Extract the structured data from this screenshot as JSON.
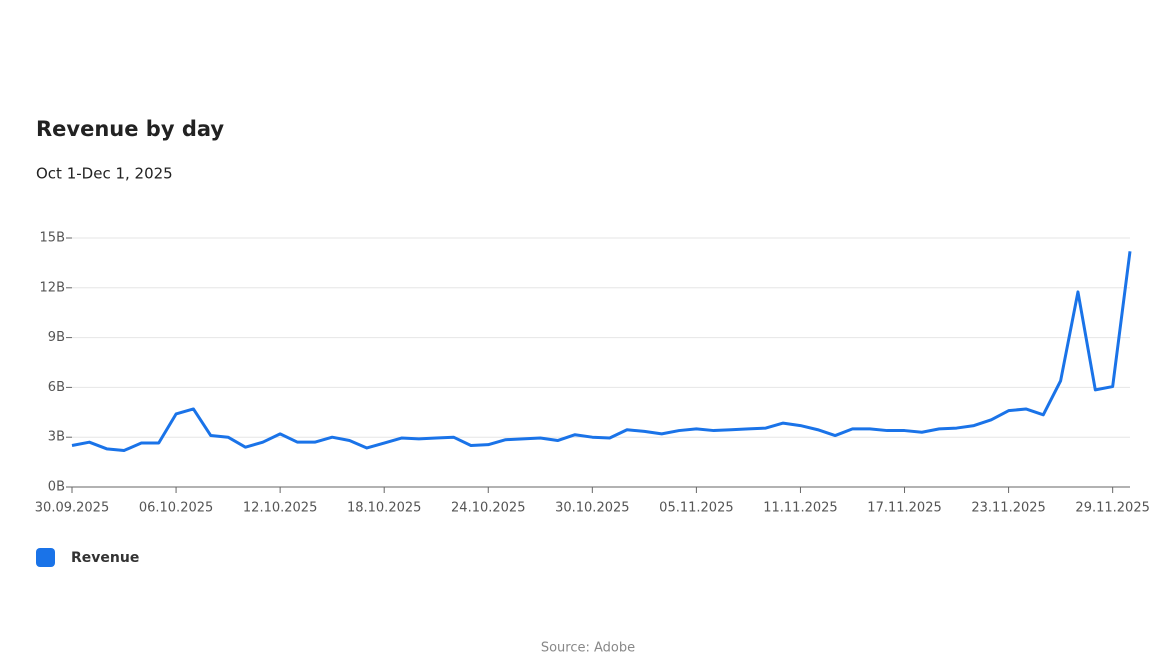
{
  "chart_data": {
    "type": "line",
    "title": "Revenue by day",
    "subtitle": "Oct 1-Dec 1, 2025",
    "x": [
      "30.09.2025",
      "01.10.2025",
      "02.10.2025",
      "03.10.2025",
      "04.10.2025",
      "05.10.2025",
      "06.10.2025",
      "07.10.2025",
      "08.10.2025",
      "09.10.2025",
      "10.10.2025",
      "11.10.2025",
      "12.10.2025",
      "13.10.2025",
      "14.10.2025",
      "15.10.2025",
      "16.10.2025",
      "17.10.2025",
      "18.10.2025",
      "19.10.2025",
      "20.10.2025",
      "21.10.2025",
      "22.10.2025",
      "23.10.2025",
      "24.10.2025",
      "25.10.2025",
      "26.10.2025",
      "27.10.2025",
      "28.10.2025",
      "29.10.2025",
      "30.10.2025",
      "31.10.2025",
      "01.11.2025",
      "02.11.2025",
      "03.11.2025",
      "04.11.2025",
      "05.11.2025",
      "06.11.2025",
      "07.11.2025",
      "08.11.2025",
      "09.11.2025",
      "10.11.2025",
      "11.11.2025",
      "12.11.2025",
      "13.11.2025",
      "14.11.2025",
      "15.11.2025",
      "16.11.2025",
      "17.11.2025",
      "18.11.2025",
      "19.11.2025",
      "20.11.2025",
      "21.11.2025",
      "22.11.2025",
      "23.11.2025",
      "24.11.2025",
      "25.11.2025",
      "26.11.2025",
      "27.11.2025",
      "28.11.2025",
      "29.11.2025",
      "30.11.2025"
    ],
    "xticks": [
      "30.09.2025",
      "06.10.2025",
      "12.10.2025",
      "18.10.2025",
      "24.10.2025",
      "30.10.2025",
      "05.11.2025",
      "11.11.2025",
      "17.11.2025",
      "23.11.2025",
      "29.11.2025"
    ],
    "series": [
      {
        "name": "Revenue",
        "color": "#1a73e8",
        "values": [
          2.5,
          2.7,
          2.3,
          2.2,
          2.65,
          2.65,
          4.4,
          4.7,
          3.1,
          3.0,
          2.4,
          2.7,
          3.2,
          2.7,
          2.7,
          3.0,
          2.8,
          2.35,
          2.65,
          2.95,
          2.9,
          2.95,
          3.0,
          2.5,
          2.55,
          2.85,
          2.9,
          2.95,
          2.8,
          3.15,
          3.0,
          2.95,
          3.45,
          3.35,
          3.2,
          3.4,
          3.5,
          3.4,
          3.45,
          3.5,
          3.55,
          3.85,
          3.7,
          3.45,
          3.1,
          3.5,
          3.5,
          3.4,
          3.4,
          3.3,
          3.5,
          3.55,
          3.7,
          4.05,
          4.6,
          4.7,
          4.35,
          6.4,
          11.75,
          5.85,
          6.05,
          14.2
        ]
      }
    ],
    "ylim": [
      0,
      15
    ],
    "yticks": [
      {
        "value": 0,
        "label": "0B"
      },
      {
        "value": 3,
        "label": "3B"
      },
      {
        "value": 6,
        "label": "6B"
      },
      {
        "value": 9,
        "label": "9B"
      },
      {
        "value": 12,
        "label": "12B"
      },
      {
        "value": 15,
        "label": "15B"
      }
    ],
    "grid": true,
    "source": "Source: Adobe"
  }
}
